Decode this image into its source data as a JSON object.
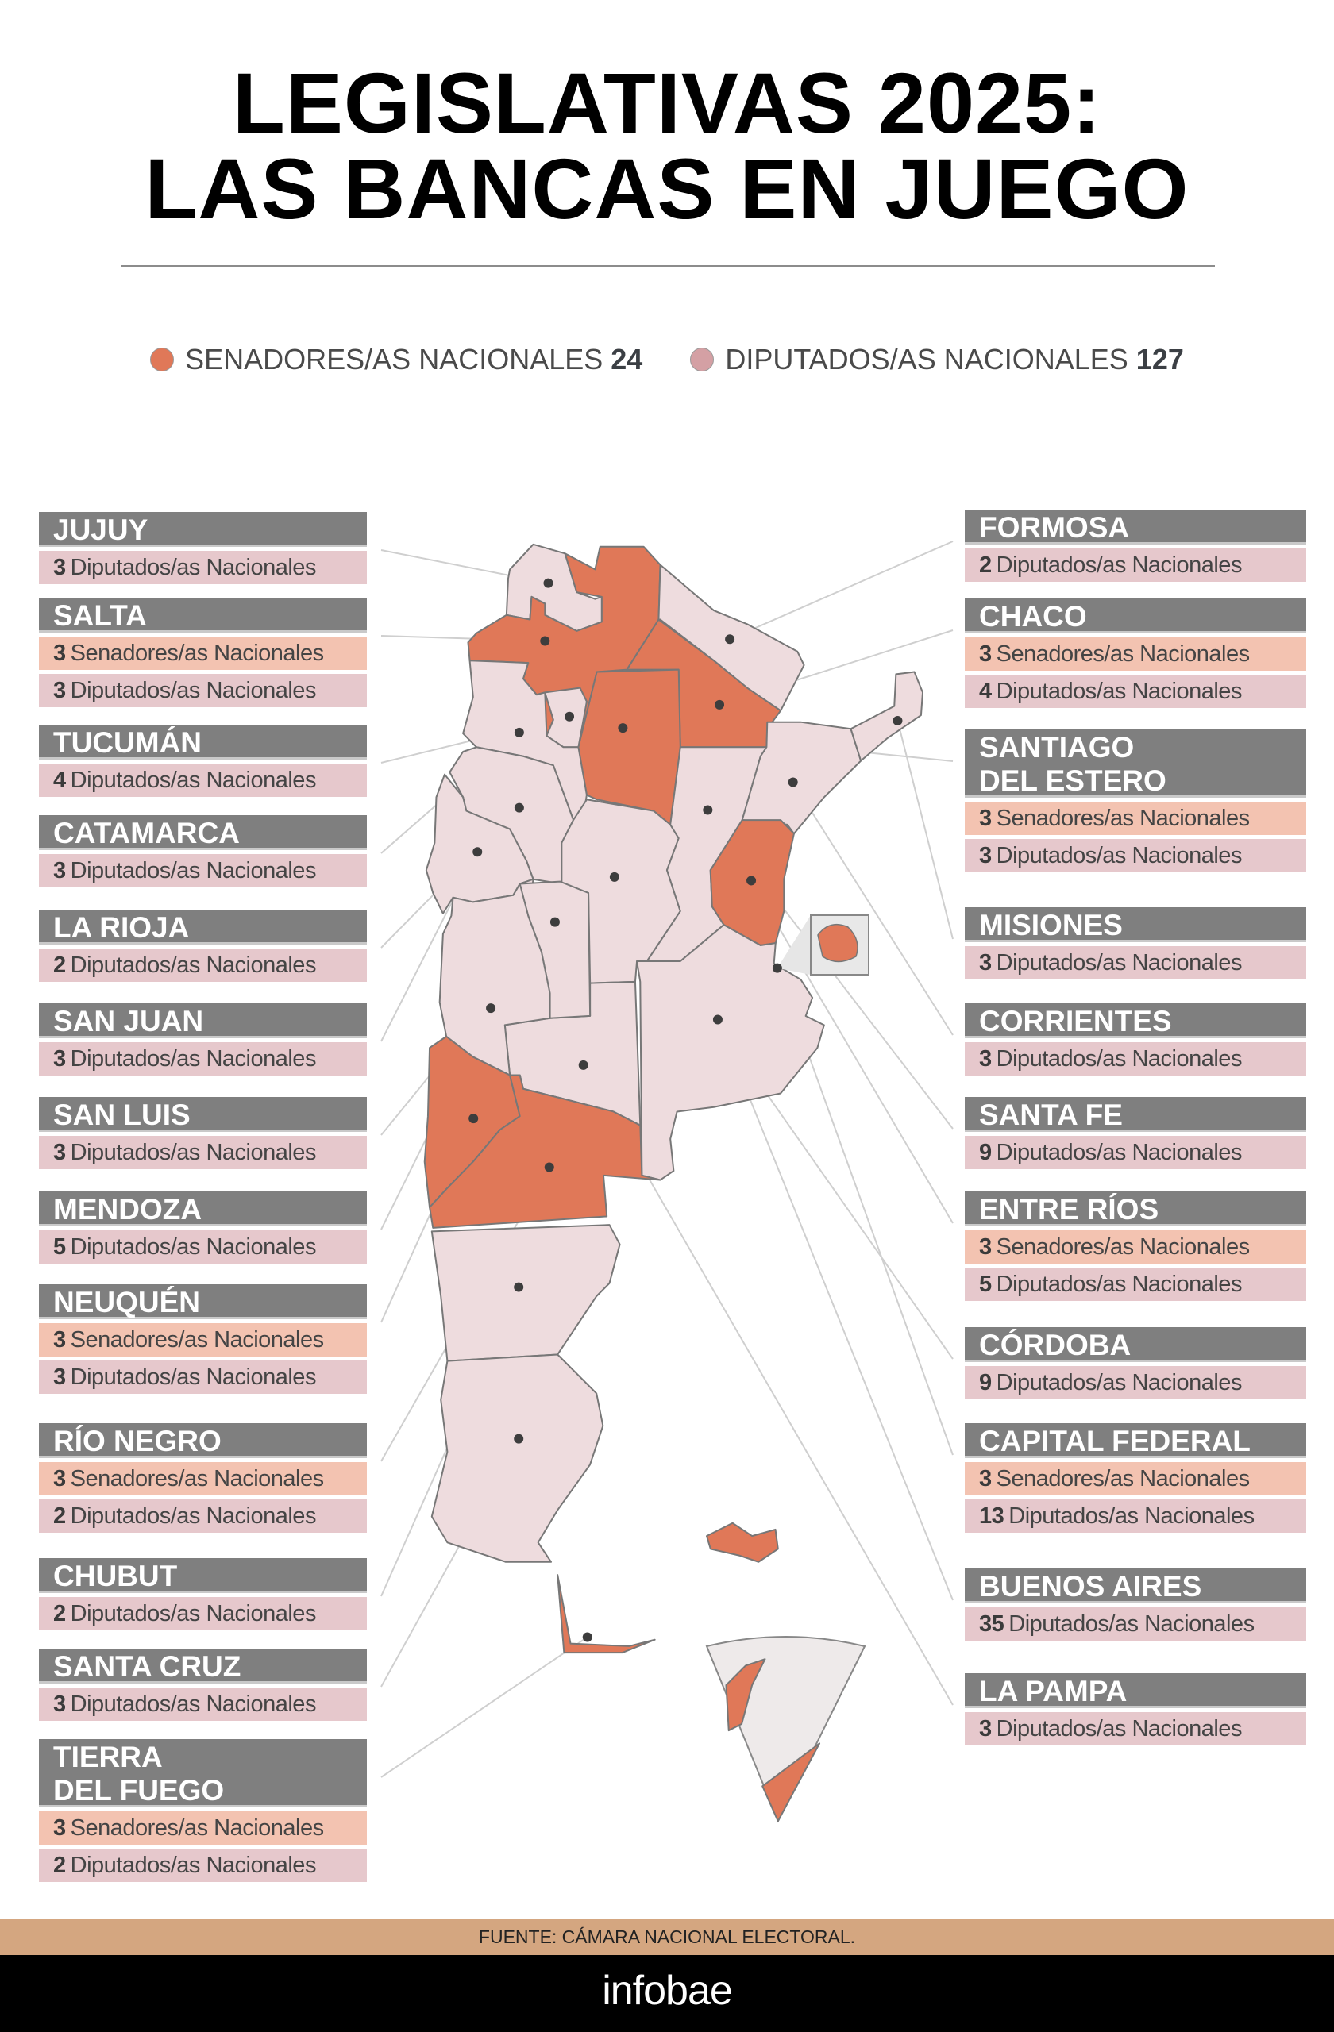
{
  "header": {
    "title_line1": "LEGISLATIVAS 2025:",
    "title_line2": "LAS BANCAS EN JUEGO"
  },
  "legend": [
    {
      "label": "SENADORES/AS NACIONALES",
      "total": "24",
      "color": "#e07858"
    },
    {
      "label": "DIPUTADOS/AS NACIONALES",
      "total": "127",
      "color": "#d4a0a4"
    }
  ],
  "colors": {
    "senators": "#e07858",
    "default": "#eedcde",
    "header": "#7f7f7f",
    "senators_row": "#f3c3b1",
    "deputies_row": "#e6c8cc"
  },
  "row_labels": {
    "sen": "Senadores/as Nacionales",
    "dip": "Diputados/as Nacionales"
  },
  "provinces_left": [
    {
      "id": "jujuy",
      "name": "JUJUY",
      "dip": "3"
    },
    {
      "id": "salta",
      "name": "SALTA",
      "sen": "3",
      "dip": "3"
    },
    {
      "id": "tucuman",
      "name": "TUCUMÁN",
      "dip": "4"
    },
    {
      "id": "catamarca",
      "name": "CATAMARCA",
      "dip": "3"
    },
    {
      "id": "larioja",
      "name": "LA RIOJA",
      "dip": "2"
    },
    {
      "id": "sanjuan",
      "name": "SAN JUAN",
      "dip": "3"
    },
    {
      "id": "sanluis",
      "name": "SAN LUIS",
      "dip": "3"
    },
    {
      "id": "mendoza",
      "name": "MENDOZA",
      "dip": "5"
    },
    {
      "id": "neuquen",
      "name": "NEUQUÉN",
      "sen": "3",
      "dip": "3"
    },
    {
      "id": "rionegro",
      "name": "RÍO  NEGRO",
      "sen": "3",
      "dip": "2"
    },
    {
      "id": "chubut",
      "name": "CHUBUT",
      "dip": "2"
    },
    {
      "id": "santacruz",
      "name": "SANTA CRUZ",
      "dip": "3"
    },
    {
      "id": "tdf",
      "name": "TIERRA\nDEL FUEGO",
      "sen": "3",
      "dip": "2"
    }
  ],
  "provinces_right": [
    {
      "id": "formosa",
      "name": "FORMOSA",
      "dip": "2"
    },
    {
      "id": "chaco",
      "name": "CHACO",
      "sen": "3",
      "dip": "4"
    },
    {
      "id": "santiago",
      "name": "SANTIAGO\nDEL ESTERO",
      "sen": "3",
      "dip": "3"
    },
    {
      "id": "misiones",
      "name": "MISIONES",
      "dip": "3"
    },
    {
      "id": "corrientes",
      "name": "CORRIENTES",
      "dip": "3"
    },
    {
      "id": "santafe",
      "name": "SANTA FE",
      "dip": "9"
    },
    {
      "id": "entrerios",
      "name": "ENTRE RÍOS",
      "sen": "3",
      "dip": "5"
    },
    {
      "id": "cordoba",
      "name": "CÓRDOBA",
      "dip": "9"
    },
    {
      "id": "caba",
      "name": "CAPITAL FEDERAL",
      "sen": "3",
      "dip": "13"
    },
    {
      "id": "buenosaires",
      "name": "BUENOS AIRES",
      "dip": "35"
    },
    {
      "id": "lapampa",
      "name": "LA PAMPA",
      "dip": "3"
    }
  ],
  "footer": {
    "source": "FUENTE: CÁMARA NACIONAL ELECTORAL.",
    "brand": "infobae"
  }
}
